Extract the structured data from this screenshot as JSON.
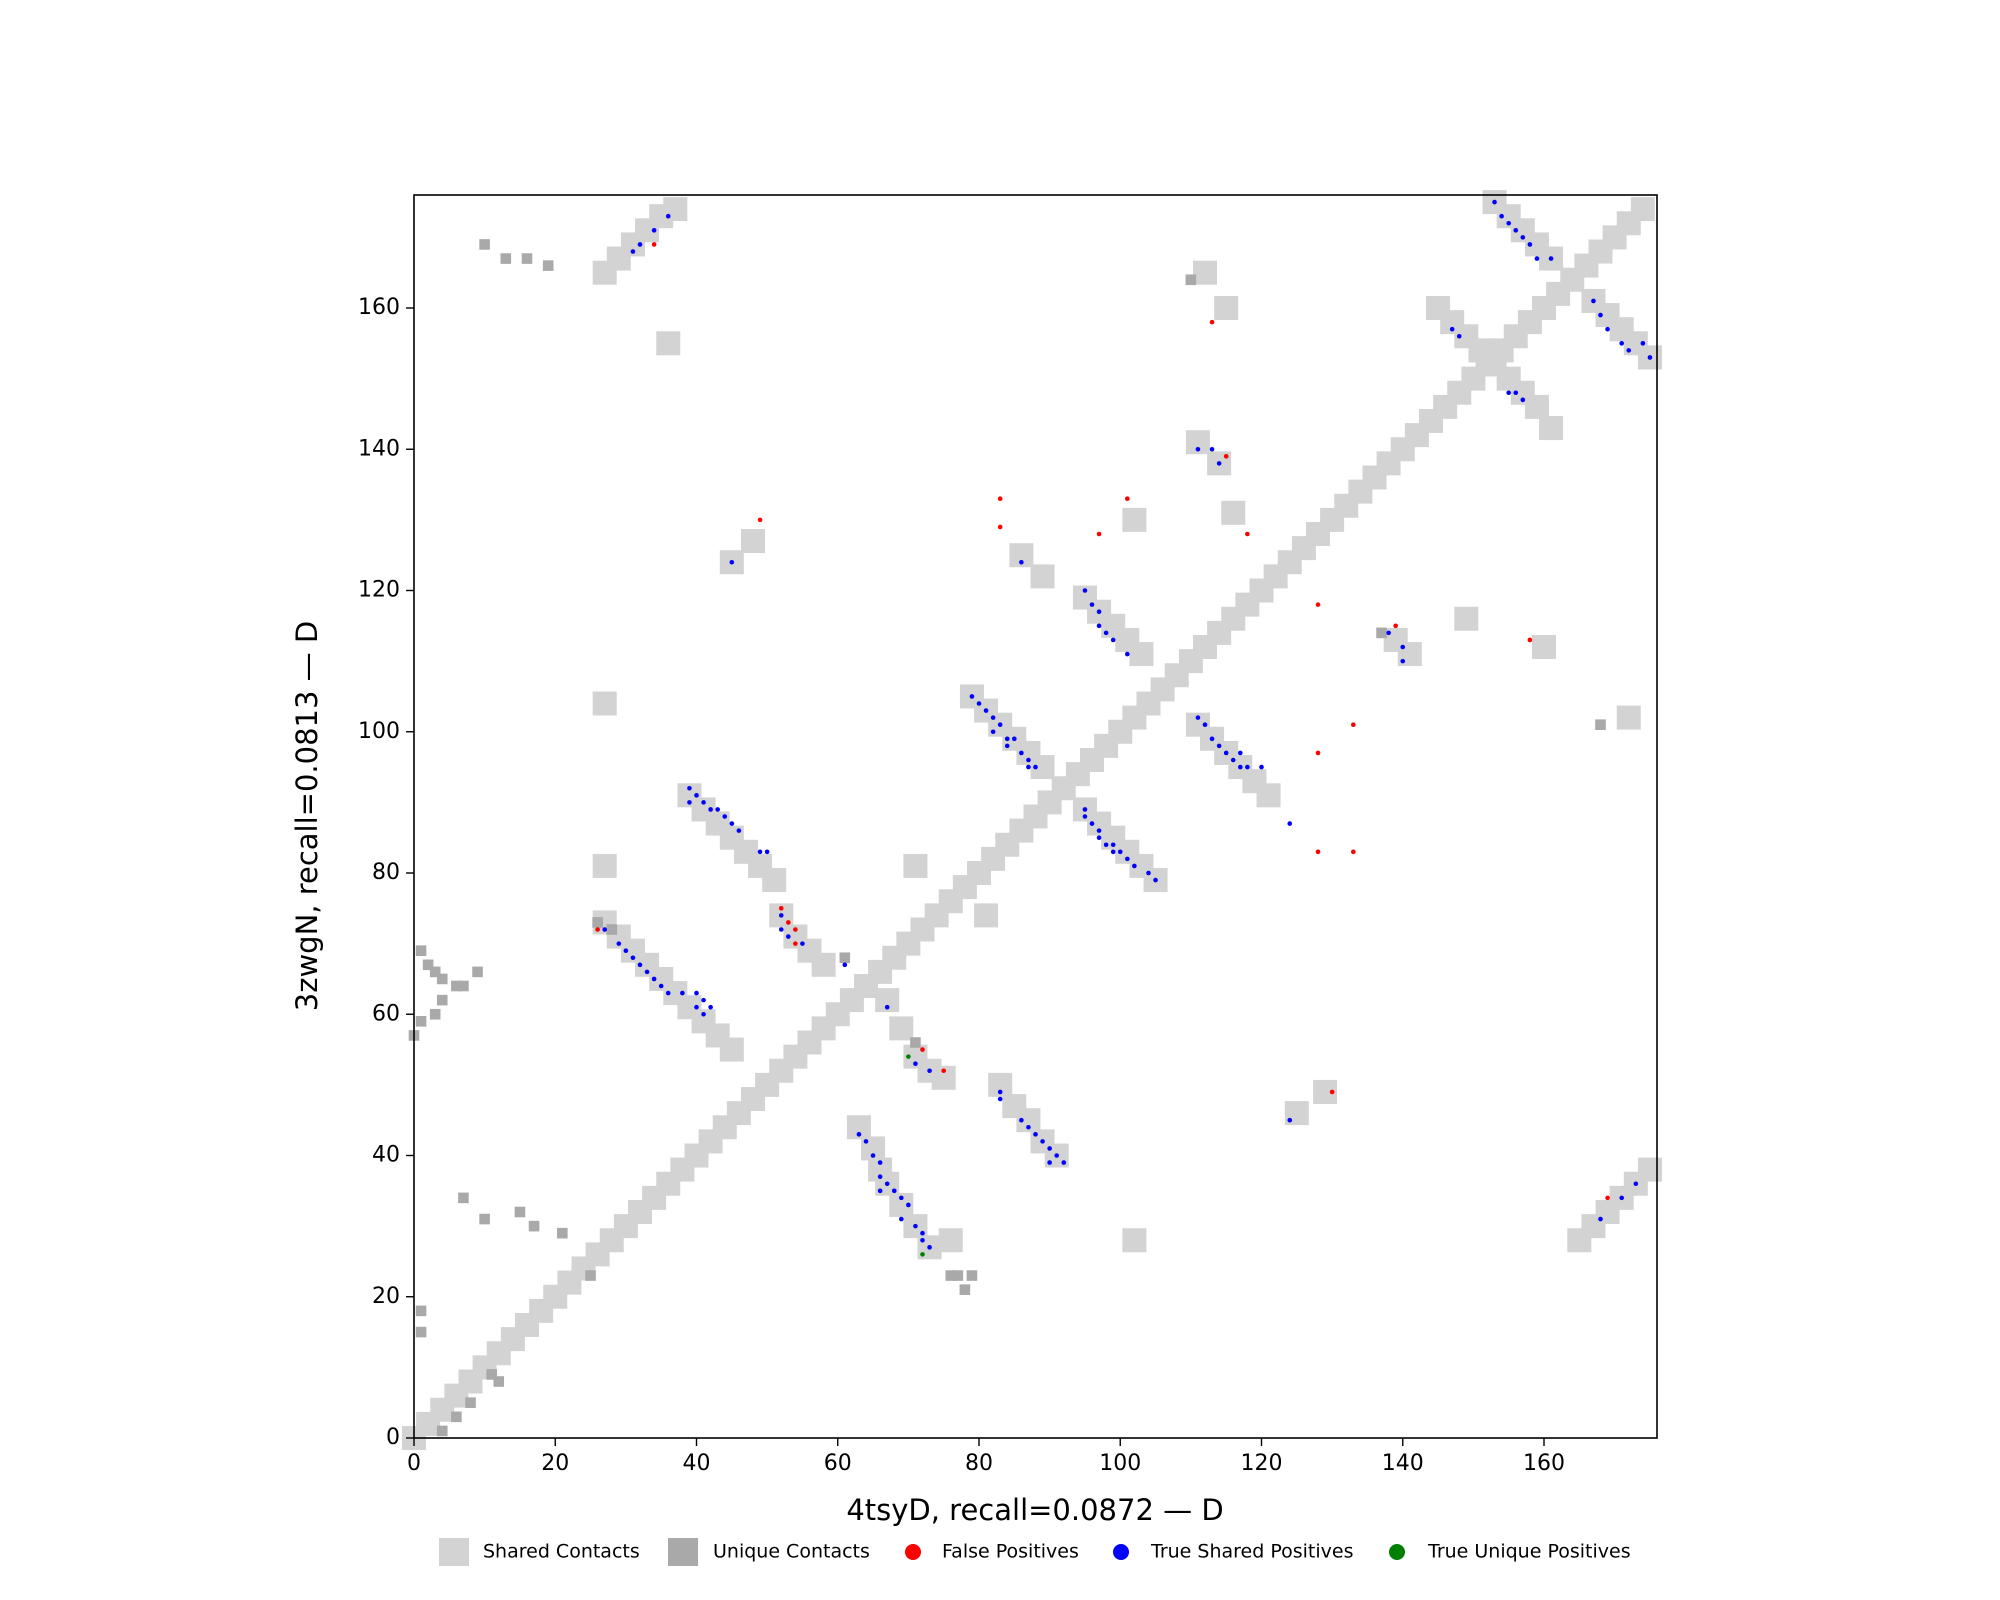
{
  "chart_data": {
    "type": "scatter",
    "x_label": "4tsyD, recall=0.0872 — D",
    "y_label": "3zwgN, recall=0.0813 — D",
    "xlim": [
      0,
      176
    ],
    "ylim": [
      0,
      176
    ],
    "xticks": [
      0,
      20,
      40,
      60,
      80,
      100,
      120,
      140,
      160
    ],
    "yticks": [
      0,
      20,
      40,
      60,
      80,
      100,
      120,
      140,
      160
    ],
    "grid": false,
    "legend": "bottom",
    "series": [
      {
        "name": "Shared Contacts",
        "color": "#d3d3d3",
        "marker": "square",
        "x": [
          0,
          2,
          4,
          6,
          8,
          10,
          12,
          14,
          16,
          18,
          20,
          22,
          24,
          26,
          28,
          30,
          32,
          34,
          36,
          38,
          40,
          42,
          44,
          46,
          48,
          50,
          52,
          54,
          56,
          58,
          60,
          62,
          64,
          66,
          68,
          70,
          72,
          74,
          76,
          78,
          80,
          82,
          84,
          86,
          88,
          90,
          92,
          94,
          96,
          98,
          100,
          102,
          104,
          106,
          108,
          110,
          112,
          114,
          116,
          118,
          120,
          122,
          124,
          126,
          128,
          130,
          132,
          134,
          136,
          138,
          140,
          142,
          144,
          146,
          148,
          150,
          152,
          154,
          156,
          158,
          160,
          162,
          164,
          166,
          168,
          170,
          172,
          174,
          27,
          29,
          31,
          33,
          35,
          37,
          39,
          41,
          43,
          45,
          39,
          41,
          43,
          45,
          47,
          49,
          51,
          79,
          81,
          83,
          85,
          87,
          89,
          95,
          97,
          99,
          101,
          103,
          105,
          111,
          113,
          115,
          117,
          119,
          121,
          83,
          85,
          87,
          89,
          91,
          63,
          65,
          66,
          67,
          69,
          71,
          73,
          52,
          54,
          56,
          58,
          67,
          69,
          71,
          73,
          75,
          86,
          89,
          95,
          97,
          99,
          101,
          103,
          145,
          147,
          149,
          151,
          153,
          155,
          157,
          159,
          161,
          153,
          155,
          157,
          159,
          161,
          167,
          169,
          171,
          173,
          175,
          27,
          29,
          31,
          33,
          35,
          37,
          165,
          167,
          169,
          171,
          173,
          175,
          45,
          48,
          111,
          114,
          139,
          141,
          125,
          129,
          27,
          27,
          71,
          81,
          102,
          116,
          112,
          115,
          149,
          160,
          172,
          76,
          102,
          36
        ],
        "y": [
          0,
          2,
          4,
          6,
          8,
          10,
          12,
          14,
          16,
          18,
          20,
          22,
          24,
          26,
          28,
          30,
          32,
          34,
          36,
          38,
          40,
          42,
          44,
          46,
          48,
          50,
          52,
          54,
          56,
          58,
          60,
          62,
          64,
          66,
          68,
          70,
          72,
          74,
          76,
          78,
          80,
          82,
          84,
          86,
          88,
          90,
          92,
          94,
          96,
          98,
          100,
          102,
          104,
          106,
          108,
          110,
          112,
          114,
          116,
          118,
          120,
          122,
          124,
          126,
          128,
          130,
          132,
          134,
          136,
          138,
          140,
          142,
          144,
          146,
          148,
          150,
          152,
          154,
          156,
          158,
          160,
          162,
          164,
          166,
          168,
          170,
          172,
          174,
          73,
          71,
          69,
          67,
          65,
          63,
          61,
          59,
          57,
          55,
          91,
          89,
          87,
          85,
          83,
          81,
          79,
          105,
          103,
          101,
          99,
          97,
          95,
          89,
          87,
          85,
          83,
          81,
          79,
          101,
          99,
          97,
          95,
          93,
          91,
          50,
          47,
          45,
          42,
          40,
          44,
          41,
          38,
          36,
          33,
          30,
          27,
          74,
          71,
          69,
          67,
          62,
          58,
          54,
          52,
          51,
          125,
          122,
          119,
          117,
          115,
          113,
          111,
          160,
          158,
          156,
          154,
          152,
          150,
          148,
          146,
          143,
          175,
          173,
          171,
          169,
          167,
          161,
          159,
          157,
          155,
          153,
          165,
          167,
          169,
          171,
          173,
          174,
          28,
          30,
          32,
          34,
          36,
          38,
          124,
          127,
          141,
          138,
          113,
          111,
          46,
          49,
          81,
          104,
          81,
          74,
          130,
          131,
          165,
          160,
          116,
          112,
          102,
          28,
          28,
          155
        ]
      },
      {
        "name": "Unique Contacts",
        "color": "#a9a9a9",
        "marker": "square",
        "x": [
          1,
          2,
          3,
          4,
          6,
          7,
          9,
          0,
          1,
          3,
          4,
          77,
          78,
          76,
          79,
          10,
          13,
          16,
          19,
          4,
          6,
          8,
          11,
          12,
          26,
          28,
          61,
          71,
          110,
          137,
          168,
          1,
          1,
          7,
          10,
          15,
          17,
          21,
          25
        ],
        "y": [
          69,
          67,
          66,
          65,
          64,
          64,
          66,
          57,
          59,
          60,
          62,
          23,
          21,
          23,
          23,
          169,
          167,
          167,
          166,
          1,
          3,
          5,
          9,
          8,
          73,
          72,
          68,
          56,
          164,
          114,
          101,
          15,
          18,
          34,
          31,
          32,
          30,
          29,
          23
        ]
      },
      {
        "name": "False Positives",
        "color": "#ff0000",
        "marker": "circle",
        "x": [
          34,
          49,
          83,
          83,
          97,
          101,
          113,
          115,
          118,
          128,
          139,
          158,
          128,
          133,
          128,
          133,
          26,
          52,
          53,
          54,
          54,
          72,
          75,
          130,
          169
        ],
        "y": [
          169,
          130,
          133,
          129,
          128,
          133,
          158,
          139,
          128,
          118,
          115,
          113,
          97,
          101,
          83,
          83,
          72,
          75,
          73,
          72,
          70,
          55,
          52,
          49,
          34
        ]
      },
      {
        "name": "True Shared Positives",
        "color": "#0000ff",
        "marker": "circle",
        "x": [
          27,
          29,
          30,
          31,
          32,
          33,
          34,
          35,
          36,
          38,
          40,
          40,
          41,
          42,
          41,
          39,
          39,
          40,
          41,
          42,
          43,
          44,
          45,
          46,
          49,
          50,
          79,
          80,
          81,
          82,
          82,
          83,
          84,
          84,
          85,
          86,
          87,
          87,
          88,
          95,
          95,
          96,
          97,
          97,
          98,
          99,
          99,
          100,
          101,
          102,
          104,
          105,
          111,
          112,
          113,
          114,
          115,
          116,
          117,
          117,
          118,
          120,
          124,
          83,
          83,
          86,
          87,
          88,
          89,
          90,
          90,
          91,
          92,
          63,
          64,
          65,
          66,
          66,
          67,
          66,
          68,
          69,
          70,
          69,
          71,
          72,
          72,
          73,
          52,
          52,
          53,
          55,
          61,
          67,
          71,
          73,
          86,
          95,
          96,
          97,
          97,
          98,
          99,
          101,
          147,
          148,
          155,
          156,
          157,
          153,
          154,
          155,
          156,
          157,
          158,
          159,
          161,
          167,
          168,
          169,
          171,
          172,
          174,
          175,
          31,
          32,
          34,
          36,
          168,
          171,
          173,
          45,
          111,
          113,
          114,
          138,
          140,
          140,
          124
        ],
        "y": [
          72,
          70,
          69,
          68,
          67,
          66,
          65,
          64,
          63,
          63,
          63,
          61,
          62,
          61,
          60,
          92,
          90,
          91,
          90,
          89,
          89,
          88,
          87,
          86,
          83,
          83,
          105,
          104,
          103,
          102,
          100,
          101,
          99,
          98,
          99,
          97,
          96,
          95,
          95,
          89,
          88,
          87,
          86,
          85,
          84,
          84,
          83,
          83,
          82,
          81,
          80,
          79,
          102,
          101,
          99,
          98,
          97,
          96,
          97,
          95,
          95,
          95,
          87,
          49,
          48,
          45,
          44,
          43,
          42,
          41,
          39,
          40,
          39,
          43,
          42,
          40,
          39,
          37,
          36,
          35,
          35,
          34,
          33,
          31,
          30,
          29,
          28,
          27,
          74,
          72,
          71,
          70,
          67,
          61,
          53,
          52,
          124,
          120,
          118,
          117,
          115,
          114,
          113,
          111,
          157,
          156,
          148,
          148,
          147,
          175,
          173,
          172,
          171,
          170,
          169,
          167,
          167,
          161,
          159,
          157,
          155,
          154,
          155,
          153,
          168,
          169,
          171,
          173,
          31,
          34,
          36,
          124,
          140,
          140,
          138,
          114,
          112,
          110,
          45
        ]
      },
      {
        "name": "True Unique Positives",
        "color": "#008000",
        "marker": "circle",
        "x": [
          70,
          72
        ],
        "y": [
          54,
          26
        ]
      }
    ]
  }
}
